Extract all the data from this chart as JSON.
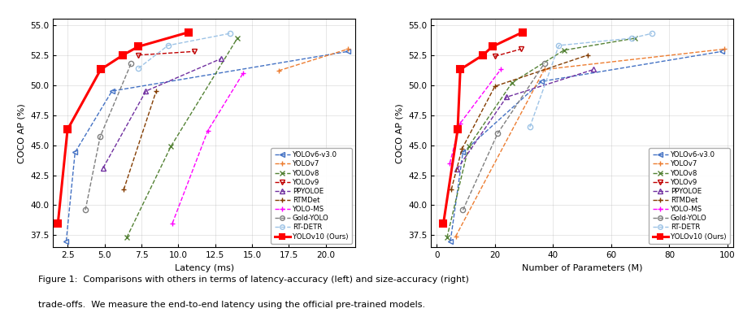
{
  "left_plot": {
    "xlabel": "Latency (ms)",
    "ylabel": "COCO AP (%)",
    "xlim": [
      1.5,
      22
    ],
    "ylim": [
      36.5,
      55.5
    ],
    "yticks": [
      37.5,
      40.0,
      42.5,
      45.0,
      47.5,
      50.0,
      52.5,
      55.0
    ],
    "xticks": [
      2.5,
      5.0,
      7.5,
      10.0,
      12.5,
      15.0,
      17.5,
      20.0
    ],
    "series": {
      "YOLOv6-v3.0": {
        "x": [
          2.4,
          3.0,
          5.5,
          21.5
        ],
        "y": [
          37.0,
          44.4,
          49.5,
          52.8
        ],
        "color": "#4472C4",
        "marker": "<",
        "linestyle": "--",
        "linewidth": 1.0
      },
      "YOLOv7": {
        "x": [
          16.8,
          21.5
        ],
        "y": [
          51.2,
          53.0
        ],
        "color": "#ED7D31",
        "marker": "+",
        "linestyle": "--",
        "linewidth": 1.0
      },
      "YOLOv8": {
        "x": [
          6.5,
          9.5,
          14.0
        ],
        "y": [
          37.3,
          44.9,
          53.9
        ],
        "color": "#548235",
        "marker": "x",
        "linestyle": "--",
        "linewidth": 1.0
      },
      "YOLOv9": {
        "x": [
          7.3,
          11.1
        ],
        "y": [
          52.5,
          52.8
        ],
        "color": "#C00000",
        "marker": "v",
        "linestyle": "--",
        "linewidth": 1.0
      },
      "PPYOLOE": {
        "x": [
          4.9,
          7.8,
          12.9
        ],
        "y": [
          43.1,
          49.5,
          52.2
        ],
        "color": "#7030A0",
        "marker": "^",
        "linestyle": "--",
        "linewidth": 1.0
      },
      "RTMDet": {
        "x": [
          6.3,
          8.5
        ],
        "y": [
          41.3,
          49.5
        ],
        "color": "#833C00",
        "marker": "+",
        "linestyle": "--",
        "linewidth": 1.0
      },
      "YOLO-MS": {
        "x": [
          9.6,
          12.0,
          14.4
        ],
        "y": [
          38.5,
          46.2,
          51.0
        ],
        "color": "#FF00FF",
        "marker": "+",
        "linestyle": "--",
        "linewidth": 1.0
      },
      "Gold-YOLO": {
        "x": [
          3.7,
          4.7,
          6.8
        ],
        "y": [
          39.6,
          45.7,
          51.8
        ],
        "color": "#7F7F7F",
        "marker": "o",
        "linestyle": "--",
        "linewidth": 1.0
      },
      "RT-DETR": {
        "x": [
          7.3,
          9.3,
          13.5
        ],
        "y": [
          51.4,
          53.3,
          54.3
        ],
        "color": "#9DC3E6",
        "marker": "o",
        "linestyle": "--",
        "linewidth": 1.0
      },
      "YOLOv10 (Ours)": {
        "x": [
          1.84,
          2.49,
          4.74,
          6.25,
          7.28,
          10.7
        ],
        "y": [
          38.5,
          46.3,
          51.3,
          52.5,
          53.2,
          54.4
        ],
        "color": "#FF0000",
        "marker": "s",
        "linestyle": "-",
        "linewidth": 2.2
      }
    }
  },
  "right_plot": {
    "xlabel": "Number of Parameters (M)",
    "ylabel": "COCO AP (%)",
    "xlim": [
      -2,
      102
    ],
    "ylim": [
      36.5,
      55.5
    ],
    "yticks": [
      37.5,
      40.0,
      42.5,
      45.0,
      47.5,
      50.0,
      52.5,
      55.0
    ],
    "xticks": [
      0,
      20,
      40,
      60,
      80,
      100
    ],
    "series": {
      "YOLOv6-v3.0": {
        "x": [
          4.7,
          9.0,
          36.0,
          98.0
        ],
        "y": [
          37.0,
          44.4,
          50.3,
          52.8
        ],
        "color": "#4472C4",
        "marker": "<",
        "linestyle": "--",
        "linewidth": 1.0
      },
      "YOLOv7": {
        "x": [
          6.5,
          37.0,
          99.0
        ],
        "y": [
          37.4,
          51.3,
          53.0
        ],
        "color": "#ED7D31",
        "marker": "+",
        "linestyle": "--",
        "linewidth": 1.0
      },
      "YOLOv8": {
        "x": [
          3.5,
          11.0,
          25.9,
          43.7,
          68.2
        ],
        "y": [
          37.3,
          44.9,
          50.2,
          52.9,
          53.9
        ],
        "color": "#548235",
        "marker": "x",
        "linestyle": "--",
        "linewidth": 1.0
      },
      "YOLOv9": {
        "x": [
          20.0,
          29.0
        ],
        "y": [
          52.4,
          53.0
        ],
        "color": "#C00000",
        "marker": "v",
        "linestyle": "--",
        "linewidth": 1.0
      },
      "PPYOLOE": {
        "x": [
          7.0,
          24.0,
          54.0
        ],
        "y": [
          43.0,
          49.0,
          51.3
        ],
        "color": "#7030A0",
        "marker": "^",
        "linestyle": "--",
        "linewidth": 1.0
      },
      "RTMDet": {
        "x": [
          5.0,
          8.7,
          20.0,
          52.0
        ],
        "y": [
          41.3,
          44.7,
          49.9,
          52.5
        ],
        "color": "#833C00",
        "marker": "+",
        "linestyle": "--",
        "linewidth": 1.0
      },
      "YOLO-MS": {
        "x": [
          4.5,
          8.0,
          22.0
        ],
        "y": [
          43.5,
          46.8,
          51.3
        ],
        "color": "#FF00FF",
        "marker": "+",
        "linestyle": "--",
        "linewidth": 1.0
      },
      "Gold-YOLO": {
        "x": [
          9.0,
          21.0,
          37.0
        ],
        "y": [
          39.6,
          46.0,
          51.8
        ],
        "color": "#7F7F7F",
        "marker": "o",
        "linestyle": "--",
        "linewidth": 1.0
      },
      "RT-DETR": {
        "x": [
          32.0,
          42.0,
          67.0,
          74.0
        ],
        "y": [
          46.5,
          53.3,
          53.9,
          54.3
        ],
        "color": "#9DC3E6",
        "marker": "o",
        "linestyle": "--",
        "linewidth": 1.0
      },
      "YOLOv10 (Ours)": {
        "x": [
          2.3,
          7.2,
          8.1,
          15.9,
          19.1,
          29.5
        ],
        "y": [
          38.5,
          46.3,
          51.3,
          52.5,
          53.2,
          54.4
        ],
        "color": "#FF0000",
        "marker": "s",
        "linestyle": "-",
        "linewidth": 2.2
      }
    }
  },
  "legend_order": [
    "YOLOv6-v3.0",
    "YOLOv7",
    "YOLOv8",
    "YOLOv9",
    "PPYOLOE",
    "RTMDet",
    "YOLO-MS",
    "Gold-YOLO",
    "RT-DETR",
    "YOLOv10 (Ours)"
  ],
  "legend_markers": {
    "YOLOv6-v3.0": "<",
    "YOLOv7": "+",
    "YOLOv8": "x",
    "YOLOv9": "v",
    "PPYOLOE": "^",
    "RTMDet": "+",
    "YOLO-MS": "+",
    "Gold-YOLO": "o",
    "RT-DETR": "o",
    "YOLOv10 (Ours)": "s"
  },
  "legend_linestyles": {
    "YOLOv6-v3.0": "--",
    "YOLOv7": "--",
    "YOLOv8": "--",
    "YOLOv9": "--",
    "PPYOLOE": "--",
    "RTMDet": "--",
    "YOLO-MS": "--",
    "Gold-YOLO": "--",
    "RT-DETR": "--",
    "YOLOv10 (Ours)": "-"
  },
  "legend_linewidths": {
    "YOLOv6-v3.0": 1.0,
    "YOLOv7": 1.0,
    "YOLOv8": 1.0,
    "YOLOv9": 1.0,
    "PPYOLOE": 1.0,
    "RTMDet": 1.0,
    "YOLO-MS": 1.0,
    "Gold-YOLO": 1.0,
    "RT-DETR": 1.0,
    "YOLOv10 (Ours)": 2.2
  },
  "legend_colors": {
    "YOLOv6-v3.0": "#4472C4",
    "YOLOv7": "#ED7D31",
    "YOLOv8": "#548235",
    "YOLOv9": "#C00000",
    "PPYOLOE": "#7030A0",
    "RTMDet": "#833C00",
    "YOLO-MS": "#FF00FF",
    "Gold-YOLO": "#7F7F7F",
    "RT-DETR": "#9DC3E6",
    "YOLOv10 (Ours)": "#FF0000"
  },
  "caption_line1": "Figure 1:  Comparisons with others in terms of latency-accuracy (left) and size-accuracy (right)",
  "caption_line2": "trade-offs.  We measure the end-to-end latency using the official pre-trained models."
}
